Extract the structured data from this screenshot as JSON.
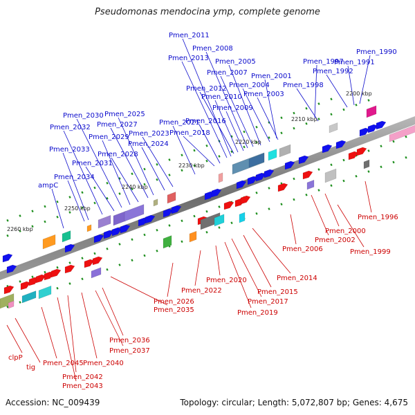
{
  "title": "Pseudomonas mendocina ymp, complete genome",
  "footer": {
    "accession": "Accession: NC_009439",
    "summary": "Topology: circular; Length: 5,072,807 bp; Genes: 4,675"
  },
  "colors": {
    "upper_label": "#0a0acc",
    "lower_label": "#cc0000",
    "backbone": "#7a7a7a",
    "tick": "#1f8f1f"
  },
  "ticks": [
    "2200 kbp",
    "2210 kbp",
    "2220 kbp",
    "2230 kbp",
    "2240 kbp",
    "2250 kbp",
    "2260 kbp"
  ],
  "upper_genes": [
    "Pmen_1990",
    "Pmen_1991",
    "Pmen_1992",
    "Pmen_1997",
    "Pmen_1998",
    "Pmen_2001",
    "Pmen_2003",
    "Pmen_2004",
    "Pmen_2005",
    "Pmen_2007",
    "Pmen_2008",
    "Pmen_2009",
    "Pmen_2010",
    "Pmen_2011",
    "Pmen_2012",
    "Pmen_2013",
    "Pmen_2016",
    "Pmen_2018",
    "Pmen_2021",
    "Pmen_2023",
    "Pmen_2024",
    "Pmen_2025",
    "Pmen_2027",
    "Pmen_2028",
    "Pmen_2029",
    "Pmen_2030",
    "Pmen_2031",
    "Pmen_2032",
    "Pmen_2033",
    "Pmen_2034",
    "ampC"
  ],
  "lower_genes": [
    "Pmen_1996",
    "Pmen_1999",
    "Pmen_2000",
    "Pmen_2002",
    "Pmen_2006",
    "Pmen_2014",
    "Pmen_2015",
    "Pmen_2017",
    "Pmen_2019",
    "Pmen_2020",
    "Pmen_2022",
    "Pmen_2026",
    "Pmen_2035",
    "Pmen_2036",
    "Pmen_2037",
    "Pmen_2040",
    "Pmen_2042",
    "Pmen_2043",
    "Pmen_2045",
    "clpP",
    "tig"
  ]
}
